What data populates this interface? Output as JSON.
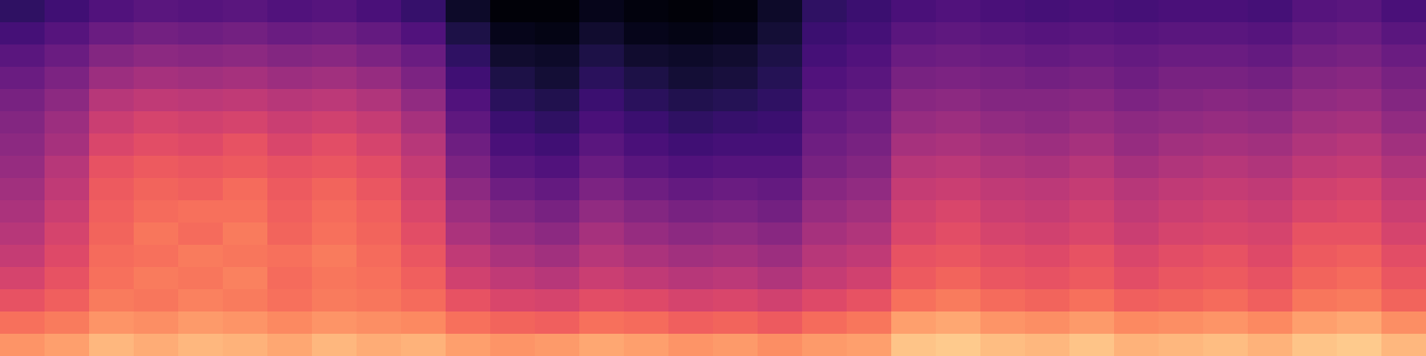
{
  "chart_data": {
    "type": "heatmap",
    "color": "magma",
    "tick_labels": false,
    "zlim": [
      -80,
      0
    ],
    "values": [
      [
        -18,
        -16,
        -12,
        -14,
        -12,
        -13,
        -15,
        -12,
        -14,
        -13,
        -16,
        -18,
        -17,
        -15,
        -16,
        -18,
        -17,
        -19,
        -17,
        -16,
        -10,
        -9,
        -11,
        -12,
        -10,
        -13,
        -12,
        -11,
        -13,
        -10,
        -9,
        -12
      ],
      [
        -24,
        -22,
        -18,
        -19,
        -17,
        -18,
        -20,
        -18,
        -19,
        -20,
        -24,
        -26,
        -27,
        -24,
        -25,
        -27,
        -26,
        -28,
        -25,
        -23,
        -16,
        -15,
        -18,
        -19,
        -17,
        -20,
        -19,
        -18,
        -20,
        -16,
        -15,
        -19
      ],
      [
        -30,
        -27,
        -22,
        -23,
        -21,
        -22,
        -24,
        -22,
        -23,
        -25,
        -30,
        -33,
        -34,
        -31,
        -32,
        -34,
        -33,
        -35,
        -32,
        -30,
        -24,
        -22,
        -25,
        -26,
        -24,
        -27,
        -26,
        -25,
        -27,
        -23,
        -22,
        -26
      ],
      [
        -34,
        -30,
        -24,
        -22,
        -23,
        -21,
        -25,
        -23,
        -24,
        -27,
        -35,
        -38,
        -40,
        -36,
        -38,
        -40,
        -39,
        -41,
        -37,
        -35,
        -28,
        -26,
        -29,
        -30,
        -28,
        -31,
        -29,
        -28,
        -30,
        -26,
        -25,
        -29
      ],
      [
        -37,
        -32,
        -25,
        -24,
        -22,
        -23,
        -24,
        -22,
        -25,
        -29,
        -38,
        -42,
        -44,
        -40,
        -42,
        -44,
        -43,
        -45,
        -40,
        -38,
        -30,
        -29,
        -31,
        -32,
        -30,
        -33,
        -31,
        -30,
        -32,
        -28,
        -27,
        -31
      ],
      [
        -40,
        -34,
        -26,
        -23,
        -25,
        -22,
        -26,
        -24,
        -26,
        -31,
        -42,
        -46,
        -48,
        -43,
        -46,
        -48,
        -47,
        -49,
        -43,
        -41,
        -33,
        -31,
        -34,
        -35,
        -33,
        -36,
        -34,
        -33,
        -34,
        -30,
        -30,
        -34
      ],
      [
        -42,
        -36,
        -27,
        -25,
        -24,
        -24,
        -27,
        -25,
        -27,
        -33,
        -45,
        -50,
        -52,
        -47,
        -50,
        -52,
        -51,
        -53,
        -46,
        -44,
        -35,
        -33,
        -36,
        -37,
        -35,
        -38,
        -36,
        -35,
        -36,
        -33,
        -32,
        -36
      ],
      [
        -44,
        -38,
        -28,
        -26,
        -27,
        -25,
        -28,
        -26,
        -29,
        -35,
        -48,
        -54,
        -56,
        -51,
        -54,
        -56,
        -55,
        -56,
        -49,
        -47,
        -37,
        -36,
        -38,
        -39,
        -37,
        -40,
        -38,
        -37,
        -38,
        -35,
        -34,
        -38
      ],
      [
        -46,
        -40,
        -30,
        -28,
        -29,
        -28,
        -30,
        -29,
        -31,
        -37,
        -51,
        -58,
        -60,
        -55,
        -58,
        -60,
        -59,
        -59,
        -52,
        -50,
        -40,
        -39,
        -41,
        -42,
        -40,
        -43,
        -41,
        -40,
        -41,
        -38,
        -37,
        -41
      ],
      [
        -48,
        -43,
        -33,
        -31,
        -32,
        -30,
        -33,
        -31,
        -34,
        -40,
        -54,
        -61,
        -63,
        -58,
        -61,
        -63,
        -62,
        -62,
        -54,
        -52,
        -43,
        -42,
        -44,
        -45,
        -43,
        -46,
        -44,
        -43,
        -44,
        -41,
        -40,
        -44
      ],
      [
        -50,
        -45,
        -36,
        -34,
        -35,
        -34,
        -36,
        -35,
        -37,
        -43,
        -57,
        -64,
        -66,
        -61,
        -64,
        -66,
        -65,
        -64,
        -56,
        -54,
        -46,
        -45,
        -47,
        -48,
        -46,
        -48,
        -47,
        -46,
        -47,
        -44,
        -43,
        -47
      ],
      [
        -52,
        -48,
        -40,
        -38,
        -39,
        -38,
        -40,
        -39,
        -41,
        -47,
        -60,
        -67,
        -69,
        -64,
        -67,
        -69,
        -68,
        -66,
        -58,
        -56,
        -49,
        -48,
        -50,
        -50,
        -49,
        -51,
        -50,
        -49,
        -50,
        -47,
        -46,
        -50
      ],
      [
        -55,
        -51,
        -45,
        -43,
        -44,
        -43,
        -45,
        -44,
        -46,
        -51,
        -63,
        -70,
        -72,
        -67,
        -70,
        -72,
        -71,
        -68,
        -60,
        -58,
        -52,
        -51,
        -52,
        -53,
        -52,
        -54,
        -52,
        -52,
        -53,
        -50,
        -49,
        -52
      ],
      [
        -58,
        -55,
        -50,
        -48,
        -49,
        -48,
        -50,
        -49,
        -51,
        -55,
        -66,
        -73,
        -74,
        -70,
        -73,
        -74,
        -73,
        -70,
        -62,
        -60,
        -55,
        -54,
        -55,
        -56,
        -55,
        -56,
        -55,
        -55,
        -56,
        -53,
        -52,
        -55
      ],
      [
        -62,
        -59,
        -55,
        -53,
        -54,
        -53,
        -55,
        -54,
        -56,
        -60,
        -70,
        -76,
        -77,
        -73,
        -76,
        -77,
        -76,
        -72,
        -64,
        -62,
        -58,
        -57,
        -58,
        -59,
        -58,
        -59,
        -58,
        -58,
        -59,
        -56,
        -55,
        -58
      ],
      [
        -66,
        -63,
        -60,
        -58,
        -59,
        -58,
        -60,
        -59,
        -61,
        -65,
        -74,
        -79,
        -79,
        -76,
        -78,
        -79,
        -78,
        -74,
        -66,
        -64,
        -61,
        -60,
        -61,
        -62,
        -61,
        -62,
        -61,
        -61,
        -62,
        -59,
        -58,
        -61
      ]
    ]
  }
}
